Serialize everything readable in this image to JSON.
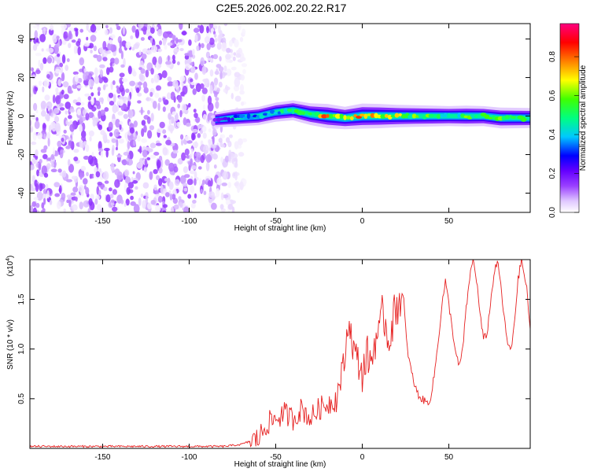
{
  "title": "C2E5.2026.002.20.22.R17",
  "chart_data": [
    {
      "type": "heatmap",
      "name": "spectrogram",
      "xlabel": "Height of straight line (km)",
      "ylabel": "Frequency (Hz)",
      "xlim": [
        -192,
        97
      ],
      "ylim": [
        -50,
        48
      ],
      "xticks": [
        -150,
        -100,
        -50,
        0,
        50
      ],
      "yticks": [
        -40,
        -20,
        0,
        20,
        40
      ],
      "colorbar": {
        "label": "Normalized spectral amplitude",
        "range": [
          0,
          0.97
        ],
        "ticks": [
          0.0,
          0.2,
          0.4,
          0.6,
          0.8
        ],
        "tick_labels": [
          "0.0",
          "0.2",
          "0.4",
          "0.6",
          "0.8"
        ],
        "colors": [
          "#ffffff",
          "#e0c8ff",
          "#9a40ff",
          "#6400ff",
          "#0000ff",
          "#00c8ff",
          "#00ff80",
          "#40ff00",
          "#ffff00",
          "#ff8000",
          "#ff0000",
          "#ff0080"
        ]
      },
      "noise_region": {
        "x": [
          -192,
          -75
        ],
        "freq_range": [
          -50,
          48
        ],
        "amplitude": [
          0.0,
          0.2
        ]
      },
      "signal_ridge": [
        {
          "x": -85,
          "freq": -2,
          "amp": 0.25
        },
        {
          "x": -75,
          "freq": -1,
          "amp": 0.4
        },
        {
          "x": -60,
          "freq": 0,
          "amp": 0.45
        },
        {
          "x": -50,
          "freq": 2,
          "amp": 0.5
        },
        {
          "x": -40,
          "freq": 3,
          "amp": 0.55
        },
        {
          "x": -30,
          "freq": 1,
          "amp": 0.65
        },
        {
          "x": -20,
          "freq": 0,
          "amp": 0.8
        },
        {
          "x": -10,
          "freq": -1,
          "amp": 0.7
        },
        {
          "x": 0,
          "freq": 0,
          "amp": 0.85
        },
        {
          "x": 10,
          "freq": 0,
          "amp": 0.8
        },
        {
          "x": 20,
          "freq": 0,
          "amp": 0.7
        },
        {
          "x": 30,
          "freq": 0,
          "amp": 0.65
        },
        {
          "x": 40,
          "freq": 0,
          "amp": 0.6
        },
        {
          "x": 50,
          "freq": 0,
          "amp": 0.55
        },
        {
          "x": 60,
          "freq": 0,
          "amp": 0.6
        },
        {
          "x": 70,
          "freq": 0,
          "amp": 0.55
        },
        {
          "x": 80,
          "freq": -1,
          "amp": 0.6
        },
        {
          "x": 97,
          "freq": -1,
          "amp": 0.55
        }
      ]
    },
    {
      "type": "line",
      "name": "snr",
      "xlabel": "Height of straight line (km)",
      "ylabel": "SNR (10 * v/v)",
      "multiplier_label": "(x10",
      "multiplier_exp": "4",
      "multiplier_close": ")",
      "xlim": [
        -192,
        97
      ],
      "ylim": [
        0,
        1.9
      ],
      "xticks": [
        -150,
        -100,
        -50,
        0,
        50
      ],
      "yticks": [
        0.5,
        1.0,
        1.5
      ],
      "ytick_labels": [
        "0.5",
        "1.0",
        "1.5"
      ],
      "color": "#e62020",
      "series": [
        {
          "name": "SNR",
          "x": [
            -192,
            -150,
            -100,
            -80,
            -70,
            -60,
            -55,
            -50,
            -45,
            -40,
            -35,
            -30,
            -25,
            -20,
            -15,
            -10,
            -8,
            -5,
            -3,
            0,
            3,
            5,
            8,
            10,
            12,
            15,
            18,
            20,
            22,
            24,
            26,
            28,
            30,
            32,
            34,
            36,
            38,
            40,
            42,
            44,
            46,
            48,
            50,
            52,
            54,
            56,
            58,
            60,
            62,
            64,
            66,
            68,
            70,
            72,
            74,
            76,
            78,
            80,
            82,
            84,
            86,
            88,
            90,
            92,
            95,
            97
          ],
          "y": [
            0.02,
            0.02,
            0.02,
            0.02,
            0.04,
            0.1,
            0.25,
            0.3,
            0.35,
            0.3,
            0.4,
            0.3,
            0.4,
            0.45,
            0.5,
            0.9,
            1.3,
            1.0,
            0.9,
            0.75,
            0.95,
            0.85,
            1.15,
            1.1,
            1.4,
            1.1,
            1.3,
            1.45,
            1.52,
            1.4,
            1.0,
            0.8,
            0.65,
            0.55,
            0.5,
            0.48,
            0.45,
            0.55,
            0.8,
            1.1,
            1.45,
            1.68,
            1.45,
            1.2,
            0.95,
            0.82,
            1.0,
            1.4,
            1.72,
            1.9,
            1.7,
            1.35,
            1.1,
            1.15,
            1.45,
            1.75,
            1.88,
            1.65,
            1.3,
            1.05,
            0.98,
            1.3,
            1.7,
            1.9,
            1.6,
            1.2
          ]
        }
      ]
    }
  ]
}
